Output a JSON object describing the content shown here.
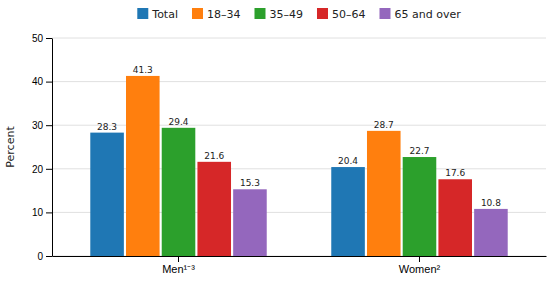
{
  "chart_data": {
    "type": "bar",
    "categories": [
      "Men¹⁻³",
      "Women²"
    ],
    "series": [
      {
        "name": "Total",
        "values": [
          28.3,
          20.4
        ]
      },
      {
        "name": "18–34",
        "values": [
          41.3,
          28.7
        ]
      },
      {
        "name": "35–49",
        "values": [
          29.4,
          22.7
        ]
      },
      {
        "name": "50–64",
        "values": [
          21.6,
          17.6
        ]
      },
      {
        "name": "65 and over",
        "values": [
          15.3,
          10.8
        ]
      }
    ],
    "ylabel": "Percent",
    "ylim": [
      0,
      50
    ],
    "yticks": [
      0,
      10,
      20,
      30,
      40,
      50
    ],
    "grid": true,
    "legend": "top",
    "data_labels": true
  }
}
